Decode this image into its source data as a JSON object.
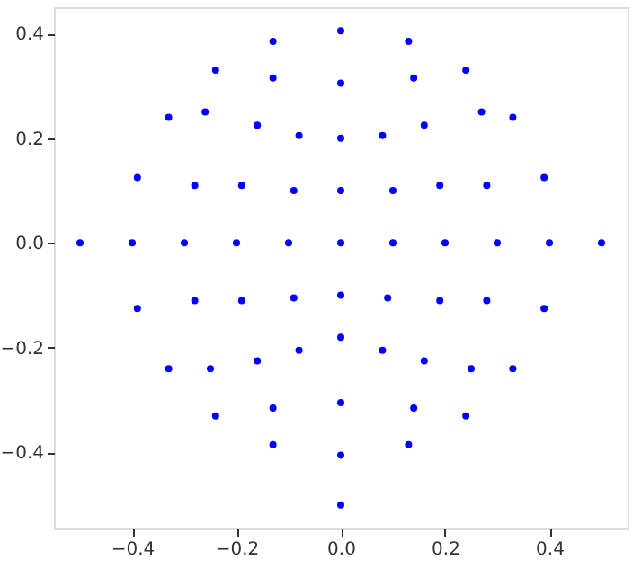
{
  "chart_data": {
    "type": "scatter",
    "marker": "circle",
    "grid": false,
    "xlim": [
      -0.55,
      0.55
    ],
    "ylim": [
      -0.545,
      0.45
    ],
    "xticks": [
      {
        "value": -0.4,
        "label": "−0.4"
      },
      {
        "value": -0.2,
        "label": "−0.2"
      },
      {
        "value": 0,
        "label": "0.0"
      },
      {
        "value": 0.2,
        "label": "0.2"
      },
      {
        "value": 0.4,
        "label": "0.4"
      }
    ],
    "yticks": [
      {
        "value": -0.4,
        "label": "−0.4"
      },
      {
        "value": -0.2,
        "label": "−0.2"
      },
      {
        "value": 0,
        "label": "0.0"
      },
      {
        "value": 0.2,
        "label": "0.2"
      },
      {
        "value": 0.4,
        "label": "0.4"
      }
    ],
    "series": [
      {
        "color": "#0000ff",
        "x": [
          -0.5,
          -0.4,
          -0.3,
          -0.2,
          -0.1,
          0,
          0.1,
          0.2,
          0.3,
          0.4,
          0.5,
          -0.39,
          0.39,
          -0.28,
          0.28,
          -0.19,
          0.19,
          -0.09,
          0.1,
          0,
          -0.33,
          0.33,
          -0.26,
          0.27,
          -0.16,
          0.16,
          -0.08,
          0.08,
          0,
          -0.24,
          0.24,
          -0.13,
          0.14,
          0,
          -0.13,
          0.13,
          0,
          -0.39,
          0.39,
          -0.28,
          0.28,
          -0.19,
          0.19,
          -0.09,
          0.09,
          0,
          -0.33,
          0.33,
          -0.25,
          0.25,
          -0.16,
          0.16,
          -0.08,
          0.08,
          0,
          -0.24,
          0.24,
          -0.13,
          0.14,
          0,
          -0.13,
          0.13,
          0,
          0
        ],
        "values": [
          0,
          0,
          0,
          0,
          0,
          0,
          0,
          0,
          0,
          0,
          0,
          0.125,
          0.125,
          0.11,
          0.11,
          0.11,
          0.11,
          0.1,
          0.1,
          0.1,
          0.24,
          0.24,
          0.25,
          0.25,
          0.225,
          0.225,
          0.205,
          0.205,
          0.2,
          0.33,
          0.33,
          0.315,
          0.315,
          0.305,
          0.385,
          0.385,
          0.405,
          -0.125,
          -0.125,
          -0.11,
          -0.11,
          -0.11,
          -0.11,
          -0.105,
          -0.105,
          -0.1,
          -0.24,
          -0.24,
          -0.24,
          -0.24,
          -0.225,
          -0.225,
          -0.205,
          -0.205,
          -0.18,
          -0.33,
          -0.33,
          -0.315,
          -0.315,
          -0.305,
          -0.385,
          -0.385,
          -0.405,
          -0.5
        ]
      }
    ]
  }
}
